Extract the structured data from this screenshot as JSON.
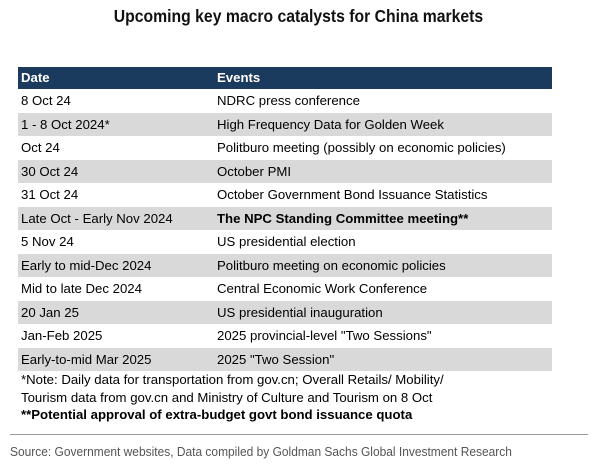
{
  "title": "Upcoming key macro catalysts for China markets",
  "table": {
    "headers": [
      "Date",
      "Events"
    ],
    "rows": [
      {
        "date": "8 Oct 24",
        "event": "NDRC press conference",
        "shaded": false,
        "bold": false
      },
      {
        "date": "1 - 8 Oct 2024*",
        "event": "High Frequency Data for Golden Week",
        "shaded": true,
        "bold": false
      },
      {
        "date": "Oct 24",
        "event": "Politburo meeting (possibly on economic policies)",
        "shaded": false,
        "bold": false
      },
      {
        "date": "30 Oct 24",
        "event": "October PMI",
        "shaded": true,
        "bold": false
      },
      {
        "date": "31 Oct 24",
        "event": "October Government Bond Issuance Statistics",
        "shaded": false,
        "bold": false
      },
      {
        "date": "Late Oct - Early Nov 2024",
        "event": "The NPC Standing Committee meeting**",
        "shaded": true,
        "bold": true
      },
      {
        "date": "5 Nov 24",
        "event": "US presidential election",
        "shaded": false,
        "bold": false
      },
      {
        "date": "Early to mid-Dec 2024",
        "event": "Politburo meeting on economic policies",
        "shaded": true,
        "bold": false
      },
      {
        "date": "Mid to late Dec 2024",
        "event": "Central Economic Work Conference",
        "shaded": false,
        "bold": false
      },
      {
        "date": "20 Jan 25",
        "event": "US presidential inauguration",
        "shaded": true,
        "bold": false
      },
      {
        "date": "Jan-Feb 2025",
        "event": "2025 provincial-level \"Two Sessions\"",
        "shaded": false,
        "bold": false
      },
      {
        "date": "Early-to-mid Mar 2025",
        "event": "2025 \"Two Session\"",
        "shaded": true,
        "bold": false
      }
    ]
  },
  "notes": {
    "line1": "*Note: Daily data for transportation from gov.cn; Overall Retails/ Mobility/",
    "line2": "Tourism data from gov.cn and Ministry of Culture and Tourism on 8 Oct",
    "line3": "**Potential approval of extra-budget govt bond issuance quota"
  },
  "source": "Source: Government websites, Data compiled by Goldman Sachs Global Investment Research"
}
